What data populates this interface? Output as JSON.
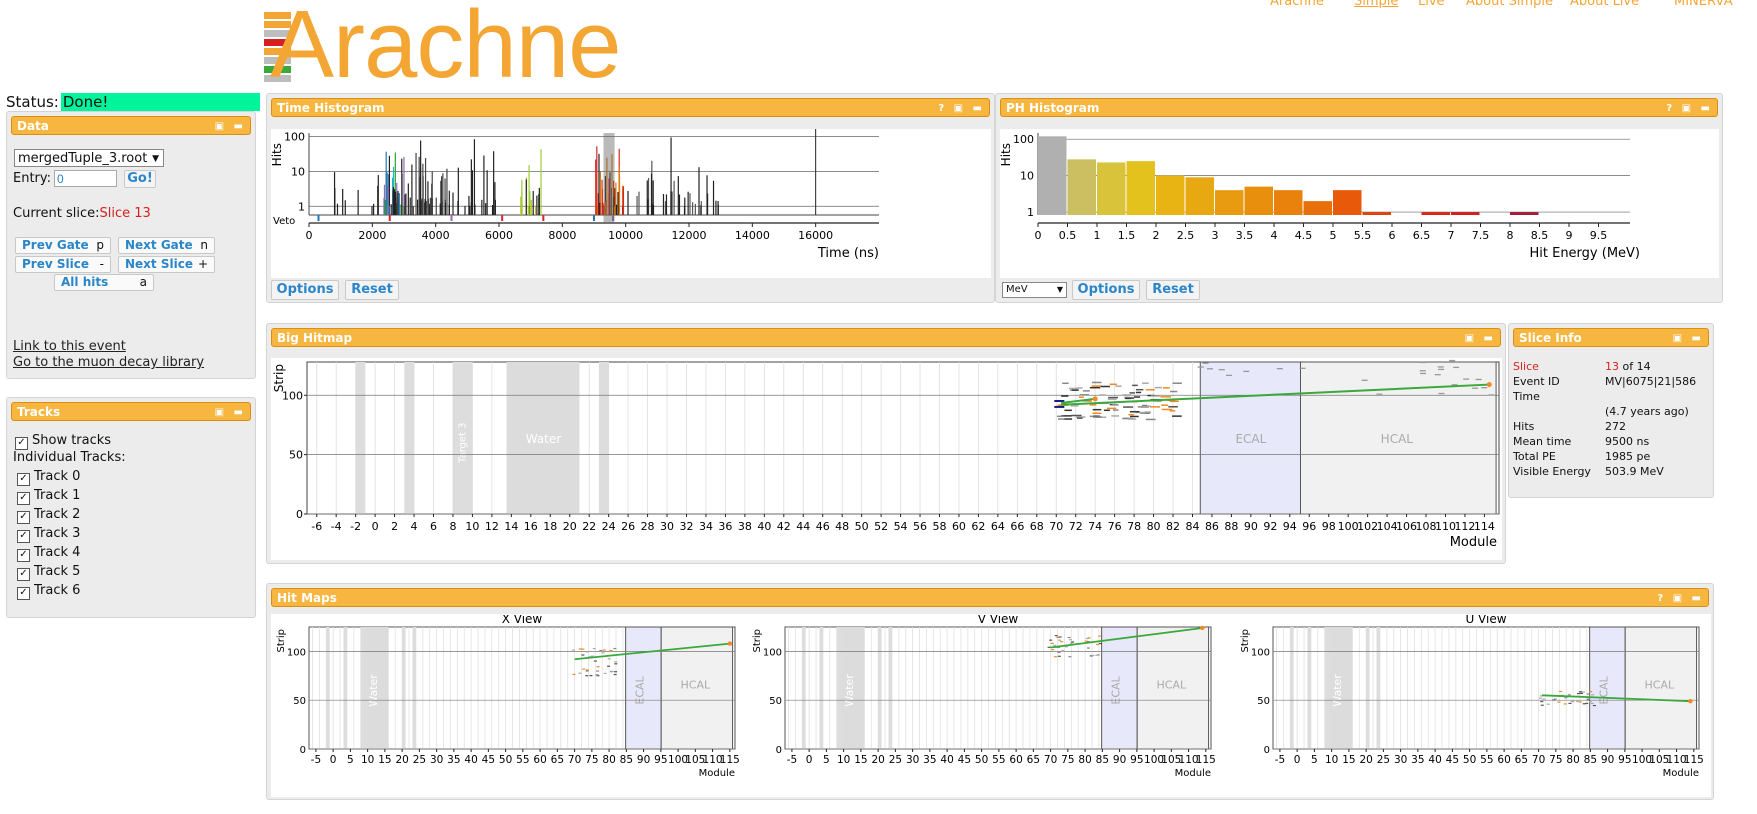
{
  "nav": {
    "items": [
      "Arachne",
      "Simple",
      "Live",
      "About Simple",
      "About Live",
      "MINERvA"
    ]
  },
  "logo": {
    "text": "Arachne"
  },
  "status": {
    "label": "Status:",
    "value": "Done!"
  },
  "data_panel": {
    "title": "Data",
    "file_select": "mergedTuple_3.root",
    "entry_label": "Entry:",
    "entry_value": "0",
    "go_label": "Go!",
    "current_slice_label": "Current slice:",
    "current_slice_value": "Slice 13",
    "prev_gate": {
      "label": "Prev Gate",
      "key": "p"
    },
    "next_gate": {
      "label": "Next Gate",
      "key": "n"
    },
    "prev_slice": {
      "label": "Prev Slice",
      "key": "-"
    },
    "next_slice": {
      "label": "Next Slice",
      "key": "+"
    },
    "all_hits": {
      "label": "All hits",
      "key": "a"
    },
    "link_event": "Link to this event",
    "link_library": "Go to the muon decay library"
  },
  "tracks_panel": {
    "title": "Tracks",
    "show_tracks": "Show tracks",
    "individual_label": "Individual Tracks:",
    "tracks": [
      "Track 0",
      "Track 1",
      "Track 2",
      "Track 3",
      "Track 4",
      "Track 5",
      "Track 6"
    ]
  },
  "time_hist": {
    "title": "Time Histogram",
    "options": "Options",
    "reset": "Reset",
    "chart_data": {
      "type": "bar",
      "ylabel": "Hits",
      "xlabel": "Time (ns)",
      "veto_label": "Veto",
      "yticks": [
        "100",
        "10",
        "1"
      ],
      "xticks": [
        "0",
        "2000",
        "4000",
        "6000",
        "8000",
        "10000",
        "12000",
        "14000",
        "16000"
      ],
      "xlim": [
        0,
        18000
      ]
    }
  },
  "ph_hist": {
    "title": "PH Histogram",
    "options": "Options",
    "reset": "Reset",
    "unit_select": "MeV",
    "chart_data": {
      "type": "bar",
      "ylabel": "Hits",
      "xlabel": "Hit Energy (MeV)",
      "yticks": [
        "100",
        "10",
        "1"
      ],
      "xticks": [
        "0",
        "0.5",
        "1",
        "1.5",
        "2",
        "2.5",
        "3",
        "3.5",
        "4",
        "4.5",
        "5",
        "5.5",
        "6",
        "6.5",
        "7",
        "7.5",
        "8",
        "8.5",
        "9",
        "9.5"
      ],
      "bins": [
        {
          "x": 0.0,
          "v": 120,
          "color": "#b0b0b0"
        },
        {
          "x": 0.5,
          "v": 28,
          "color": "#cbbf62"
        },
        {
          "x": 1.0,
          "v": 23,
          "color": "#d9c33b"
        },
        {
          "x": 1.5,
          "v": 25,
          "color": "#e3c21e"
        },
        {
          "x": 2.0,
          "v": 10,
          "color": "#e8b414"
        },
        {
          "x": 2.5,
          "v": 9,
          "color": "#e8a812"
        },
        {
          "x": 3.0,
          "v": 4,
          "color": "#e89a10"
        },
        {
          "x": 3.5,
          "v": 5,
          "color": "#e8900e"
        },
        {
          "x": 4.0,
          "v": 4,
          "color": "#e8820c"
        },
        {
          "x": 4.5,
          "v": 2,
          "color": "#e8700b"
        },
        {
          "x": 5.0,
          "v": 4,
          "color": "#e85a0a"
        },
        {
          "x": 5.5,
          "v": 1,
          "color": "#e0420d"
        },
        {
          "x": 6.5,
          "v": 1,
          "color": "#d8281a"
        },
        {
          "x": 7.0,
          "v": 1,
          "color": "#d0201e"
        },
        {
          "x": 8.0,
          "v": 1,
          "color": "#a81a3a"
        }
      ]
    }
  },
  "big_hitmap": {
    "title": "Big Hitmap",
    "ylabel": "Strip",
    "xlabel": "Module",
    "region_labels": [
      "Water",
      "ECAL",
      "HCAL",
      "Target 3"
    ],
    "yticks": [
      "100",
      "50",
      "0"
    ],
    "xticks": [
      "-6",
      "-4",
      "-2",
      "0",
      "2",
      "4",
      "6",
      "8",
      "10",
      "12",
      "14",
      "16",
      "18",
      "20",
      "22",
      "24",
      "26",
      "28",
      "30",
      "32",
      "34",
      "36",
      "38",
      "40",
      "42",
      "44",
      "46",
      "48",
      "50",
      "52",
      "54",
      "56",
      "58",
      "60",
      "62",
      "64",
      "66",
      "68",
      "70",
      "72",
      "74",
      "76",
      "78",
      "80",
      "82",
      "84",
      "86",
      "88",
      "90",
      "92",
      "94",
      "96",
      "98",
      "100",
      "102",
      "104",
      "106",
      "108",
      "110",
      "112",
      "114"
    ]
  },
  "slice_info": {
    "title": "Slice Info",
    "rows": [
      {
        "k": "Slice",
        "v": "13 of 14"
      },
      {
        "k": "Event ID",
        "v": "MV|6075|21|586"
      },
      {
        "k": "Time",
        "v": ""
      },
      {
        "k": "",
        "v": "(4.7 years ago)"
      },
      {
        "k": "Hits",
        "v": "272"
      },
      {
        "k": "Mean time",
        "v": "9500 ns"
      },
      {
        "k": "Total PE",
        "v": "1985 pe"
      },
      {
        "k": "Visible Energy",
        "v": "503.9 MeV"
      }
    ]
  },
  "hit_maps": {
    "title": "Hit Maps",
    "views": [
      {
        "title": "X View",
        "ylabel": "Strip",
        "xlabel": "Module"
      },
      {
        "title": "V View",
        "ylabel": "Strip",
        "xlabel": "Module"
      },
      {
        "title": "U View",
        "ylabel": "Strip",
        "xlabel": "Module"
      }
    ],
    "region_labels": [
      "Water",
      "ECAL",
      "HCAL"
    ],
    "yticks": [
      "100",
      "50",
      "0"
    ],
    "xticks": [
      "-5",
      "0",
      "5",
      "10",
      "15",
      "20",
      "25",
      "30",
      "35",
      "40",
      "45",
      "50",
      "55",
      "60",
      "65",
      "70",
      "75",
      "80",
      "85",
      "90",
      "95",
      "100",
      "105",
      "110",
      "115"
    ]
  },
  "colors": {
    "accent": "#f7b640",
    "status_ok": "#00f59b",
    "slice_red": "#d62020",
    "track_green": "#3aa83a"
  }
}
